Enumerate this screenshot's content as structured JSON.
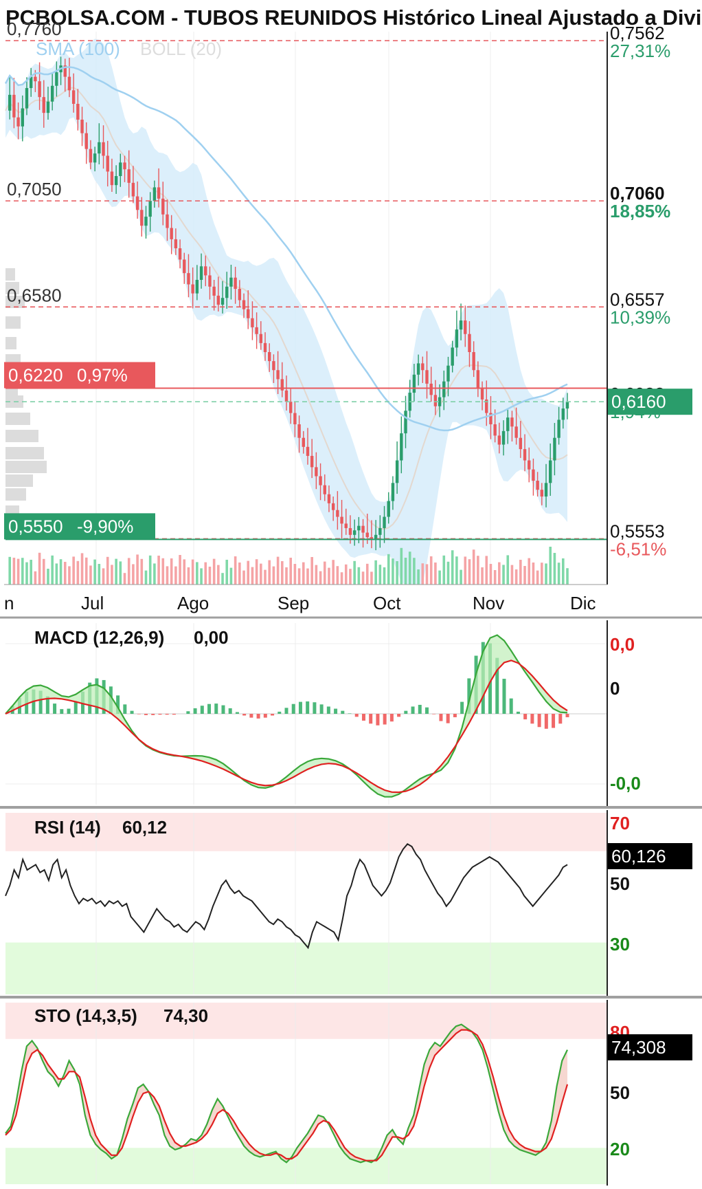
{
  "header": {
    "title": "PCBOLSA.COM - TUBOS REUNIDOS Histórico Lineal Ajustado a Divid"
  },
  "chart_data": [
    {
      "type": "candlestick",
      "legend": [
        {
          "label": "SMA (100)",
          "color": "#9fd0f0"
        },
        {
          "label": "BOLL (20)",
          "color": "#dddddd"
        }
      ],
      "x_months": [
        "n",
        "Jul",
        "Ago",
        "Sep",
        "Oct",
        "Nov",
        "Dic"
      ],
      "ylim": [
        0.535,
        0.78
      ],
      "price_close_series": [
        0.745,
        0.752,
        0.742,
        0.738,
        0.746,
        0.755,
        0.76,
        0.758,
        0.751,
        0.744,
        0.749,
        0.756,
        0.762,
        0.765,
        0.76,
        0.754,
        0.748,
        0.741,
        0.735,
        0.728,
        0.722,
        0.726,
        0.731,
        0.725,
        0.718,
        0.712,
        0.716,
        0.722,
        0.719,
        0.713,
        0.707,
        0.701,
        0.694,
        0.698,
        0.705,
        0.711,
        0.706,
        0.699,
        0.693,
        0.688,
        0.684,
        0.679,
        0.673,
        0.668,
        0.664,
        0.67,
        0.676,
        0.672,
        0.667,
        0.663,
        0.659,
        0.662,
        0.667,
        0.671,
        0.666,
        0.661,
        0.657,
        0.653,
        0.649,
        0.646,
        0.642,
        0.638,
        0.634,
        0.63,
        0.626,
        0.621,
        0.616,
        0.611,
        0.606,
        0.6,
        0.596,
        0.592,
        0.587,
        0.583,
        0.579,
        0.575,
        0.571,
        0.568,
        0.565,
        0.562,
        0.56,
        0.557,
        0.559,
        0.561,
        0.558,
        0.556,
        0.555,
        0.557,
        0.56,
        0.565,
        0.572,
        0.58,
        0.59,
        0.602,
        0.612,
        0.62,
        0.628,
        0.633,
        0.63,
        0.624,
        0.619,
        0.614,
        0.618,
        0.625,
        0.632,
        0.64,
        0.648,
        0.652,
        0.646,
        0.638,
        0.63,
        0.622,
        0.617,
        0.611,
        0.606,
        0.601,
        0.597,
        0.603,
        0.609,
        0.605,
        0.6,
        0.595,
        0.59,
        0.586,
        0.581,
        0.577,
        0.574,
        0.58,
        0.59,
        0.6,
        0.608,
        0.613,
        0.616
      ],
      "levels": [
        {
          "left_label": "0,7760",
          "value": 0.776,
          "right_label": "0,7562",
          "right_pct": "27,31%",
          "pct_color": "#2a9d6b",
          "line_color": "#e8585c",
          "bold": false
        },
        {
          "left_label": "0,7050",
          "value": 0.705,
          "right_label": "0,7060",
          "right_pct": "18,85%",
          "pct_color": "#2a9d6b",
          "line_color": "#e8585c",
          "bold": true
        },
        {
          "left_label": "0,6580",
          "value": 0.658,
          "right_label": "0,6557",
          "right_pct": "10,39%",
          "pct_color": "#2a9d6b",
          "line_color": "#e8585c",
          "bold": false
        },
        {
          "left_label": "",
          "value": 0.616,
          "right_label": "0,6033",
          "right_pct": "1,94%",
          "pct_color": "#2a9d6b",
          "line_color": "#7fd0a8",
          "bold": false
        },
        {
          "left_label": "",
          "value": 0.5553,
          "right_label": "0,5553",
          "right_pct": "-6,51%",
          "pct_color": "#e8585c",
          "line_color": "#e8585c",
          "bold": false
        }
      ],
      "current_price_tag": "0,6160",
      "resistance": {
        "label": "0,6220",
        "pct": "0,97%",
        "value": 0.622,
        "color": "#e8585c"
      },
      "support": {
        "label": "0,5550",
        "pct": "-9,90%",
        "value": 0.555,
        "color": "#2a9d6b"
      }
    },
    {
      "type": "line",
      "name": "MACD (12,26,9)",
      "value_label": "0,00",
      "axis_labels": [
        {
          "text": "0,0",
          "color": "#e02020"
        },
        {
          "text": "0",
          "color": "#111111"
        },
        {
          "text": "-0,0",
          "color": "#1a8a1a"
        }
      ],
      "macd": [
        0.0,
        0.003,
        0.0062,
        0.0089,
        0.0104,
        0.0107,
        0.0098,
        0.0082,
        0.0067,
        0.0063,
        0.0073,
        0.009,
        0.0105,
        0.0109,
        0.0096,
        0.0066,
        0.0024,
        -0.0022,
        -0.0064,
        -0.0097,
        -0.012,
        -0.0135,
        -0.0145,
        -0.0152,
        -0.0157,
        -0.0159,
        -0.0158,
        -0.0157,
        -0.0158,
        -0.0163,
        -0.0172,
        -0.0187,
        -0.0207,
        -0.0229,
        -0.025,
        -0.0266,
        -0.0276,
        -0.0278,
        -0.0271,
        -0.0256,
        -0.0236,
        -0.0214,
        -0.0194,
        -0.0179,
        -0.017,
        -0.0167,
        -0.0169,
        -0.0176,
        -0.0188,
        -0.0206,
        -0.0229,
        -0.0255,
        -0.028,
        -0.03,
        -0.0311,
        -0.0311,
        -0.0301,
        -0.0283,
        -0.0263,
        -0.0244,
        -0.0231,
        -0.0223,
        -0.0211,
        -0.0183,
        -0.0131,
        -0.0052,
        0.0048,
        0.015,
        0.0234,
        0.0284,
        0.0295,
        0.0274,
        0.0236,
        0.0195,
        0.0156,
        0.0119,
        0.0081,
        0.0046,
        0.0019,
        0.0006,
        0.0004
      ],
      "signal": [
        0.0,
        0.0012,
        0.0025,
        0.0037,
        0.0047,
        0.0053,
        0.0057,
        0.0058,
        0.0056,
        0.0051,
        0.0045,
        0.0038,
        0.0032,
        0.0026,
        0.0017,
        0.0002,
        -0.0019,
        -0.0044,
        -0.0071,
        -0.0096,
        -0.0117,
        -0.0132,
        -0.0143,
        -0.015,
        -0.0155,
        -0.0159,
        -0.0164,
        -0.017,
        -0.0177,
        -0.0186,
        -0.0196,
        -0.0207,
        -0.022,
        -0.0233,
        -0.0246,
        -0.0257,
        -0.0265,
        -0.0269,
        -0.0267,
        -0.0261,
        -0.025,
        -0.0237,
        -0.0222,
        -0.0208,
        -0.0197,
        -0.0189,
        -0.0186,
        -0.0188,
        -0.0195,
        -0.0207,
        -0.0222,
        -0.0239,
        -0.0257,
        -0.0273,
        -0.0286,
        -0.0293,
        -0.0294,
        -0.029,
        -0.028,
        -0.0265,
        -0.0246,
        -0.0222,
        -0.0194,
        -0.0161,
        -0.0123,
        -0.008,
        -0.0035,
        0.0014,
        0.0066,
        0.0119,
        0.0164,
        0.0192,
        0.02,
        0.019,
        0.0169,
        0.0142,
        0.0112,
        0.0081,
        0.0052,
        0.0029,
        0.0012
      ],
      "ylim": [
        -0.034,
        0.034
      ]
    },
    {
      "type": "line",
      "name": "RSI (14)",
      "value_label": "60,12",
      "value_tag": "60,126",
      "axis_labels": [
        {
          "text": "70",
          "color": "#e02020"
        },
        {
          "text": "50",
          "color": "#111111"
        },
        {
          "text": "30",
          "color": "#1a8a1a"
        }
      ],
      "values": [
        48,
        52,
        58,
        55,
        62,
        58,
        59,
        60,
        57,
        58,
        54,
        60,
        62,
        55,
        58,
        52,
        48,
        45,
        47,
        46,
        47,
        45,
        46,
        44,
        46,
        45,
        46,
        44,
        45,
        40,
        38,
        36,
        34,
        37,
        40,
        43,
        41,
        39,
        38,
        36,
        37,
        35,
        34,
        36,
        38,
        37,
        35,
        39,
        44,
        48,
        52,
        54,
        51,
        49,
        50,
        48,
        47,
        46,
        44,
        42,
        40,
        38,
        37,
        39,
        38,
        36,
        35,
        33,
        32,
        30,
        28,
        34,
        38,
        37,
        36,
        35,
        34,
        31,
        39,
        48,
        52,
        58,
        62,
        60,
        56,
        52,
        50,
        48,
        50,
        53,
        58,
        63,
        66,
        68,
        67,
        64,
        62,
        58,
        55,
        52,
        49,
        47,
        44,
        46,
        49,
        52,
        55,
        57,
        59,
        60,
        61,
        62,
        63,
        62,
        61,
        59,
        57,
        55,
        53,
        51,
        48,
        46,
        44,
        46,
        48,
        50,
        52,
        54,
        56,
        59,
        60
      ],
      "ylim": [
        10,
        80
      ]
    },
    {
      "type": "line",
      "name": "STO (14,3,5)",
      "value_label": "74,30",
      "value_tag": "74,308",
      "axis_labels": [
        {
          "text": "80",
          "color": "#e02020"
        },
        {
          "text": "50",
          "color": "#111111"
        },
        {
          "text": "20",
          "color": "#1a8a1a"
        }
      ],
      "k": [
        28,
        32,
        45,
        62,
        76,
        79,
        75,
        68,
        62,
        59,
        54,
        60,
        68,
        63,
        55,
        38,
        27,
        22,
        19,
        17,
        14,
        16,
        25,
        36,
        44,
        53,
        55,
        51,
        44,
        38,
        27,
        21,
        19,
        20,
        22,
        25,
        24,
        27,
        33,
        41,
        47,
        43,
        37,
        31,
        26,
        21,
        18,
        16,
        15,
        16,
        17,
        18,
        14,
        12,
        15,
        20,
        24,
        28,
        33,
        38,
        37,
        33,
        27,
        21,
        17,
        14,
        13,
        12,
        13,
        12,
        14,
        20,
        27,
        30,
        25,
        22,
        31,
        38,
        52,
        66,
        74,
        78,
        76,
        80,
        84,
        87,
        88,
        86,
        84,
        80,
        74,
        64,
        52,
        40,
        30,
        24,
        21,
        19,
        18,
        17,
        16,
        18,
        23,
        35,
        54,
        68,
        74
      ],
      "d": [
        27,
        30,
        38,
        52,
        66,
        72,
        74,
        71,
        66,
        62,
        58,
        58,
        62,
        62,
        59,
        48,
        36,
        27,
        22,
        19,
        16,
        16,
        20,
        28,
        37,
        45,
        50,
        51,
        48,
        43,
        35,
        28,
        23,
        21,
        21,
        22,
        23,
        25,
        28,
        33,
        39,
        41,
        39,
        35,
        30,
        26,
        22,
        19,
        17,
        16,
        16,
        17,
        16,
        14,
        14,
        16,
        20,
        24,
        28,
        33,
        35,
        34,
        30,
        25,
        20,
        17,
        15,
        14,
        13,
        13,
        13,
        16,
        21,
        26,
        26,
        25,
        27,
        32,
        42,
        54,
        64,
        71,
        74,
        77,
        80,
        83,
        85,
        85,
        84,
        82,
        77,
        69,
        59,
        48,
        38,
        30,
        25,
        22,
        20,
        19,
        18,
        18,
        20,
        25,
        34,
        45,
        55
      ],
      "ylim": [
        0,
        100
      ]
    }
  ]
}
